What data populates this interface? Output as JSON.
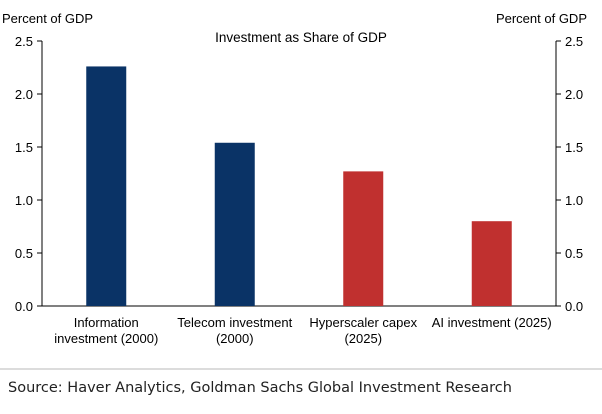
{
  "chart_data": {
    "type": "bar",
    "title": "Investment as Share of GDP",
    "ylabel_left": "Percent of GDP",
    "ylabel_right": "Percent of GDP",
    "ylim": [
      0,
      2.5
    ],
    "yticks": [
      "0.0",
      "0.5",
      "1.0",
      "1.5",
      "2.0",
      "2.5"
    ],
    "categories": [
      [
        "Information",
        "investment (2000)"
      ],
      [
        "Telecom investment",
        "(2000)"
      ],
      [
        "Hyperscaler capex",
        "(2025)"
      ],
      [
        "AI investment (2025)"
      ]
    ],
    "values": [
      2.26,
      1.54,
      1.27,
      0.8
    ],
    "bar_colors": [
      "#0a3366",
      "#0a3366",
      "#c0302f",
      "#c0302f"
    ],
    "grid": false,
    "legend": "none"
  },
  "source": "Source: Haver Analytics, Goldman Sachs Global Investment Research"
}
